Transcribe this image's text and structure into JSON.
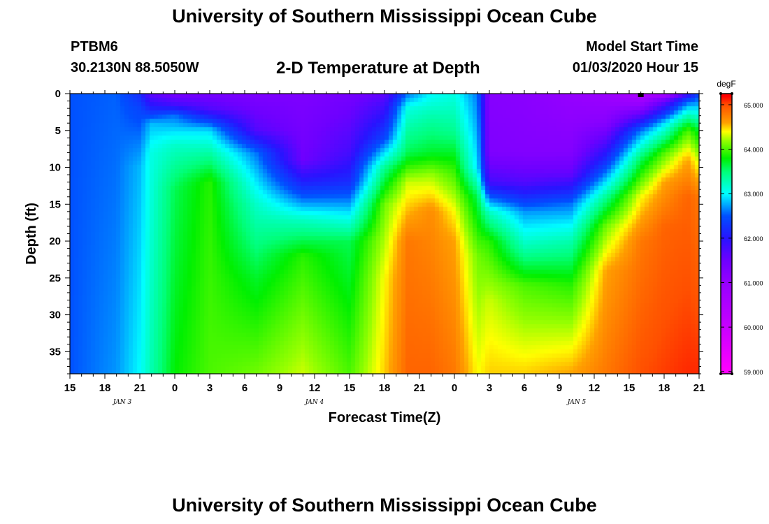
{
  "header": {
    "title": "University of Southern Mississippi Ocean Cube",
    "station_id": "PTBM6",
    "station_coords": "30.2130N 88.5050W",
    "plot_title": "2-D Temperature at Depth",
    "model_start_label": "Model Start Time",
    "model_start_value": "01/03/2020 Hour 15"
  },
  "footer": {
    "title": "University of Southern Mississippi Ocean Cube"
  },
  "chart_data": {
    "type": "heatmap",
    "title": "2-D Temperature at Depth",
    "xlabel": "Forecast Time(Z)",
    "ylabel": "Depth (ft)",
    "x_tick_labels": [
      "15",
      "18",
      "21",
      "0",
      "3",
      "6",
      "9",
      "12",
      "15",
      "18",
      "21",
      "0",
      "3",
      "6",
      "9",
      "12",
      "15",
      "18",
      "21"
    ],
    "x_range_hours": [
      0,
      54
    ],
    "date_labels": [
      {
        "hour": 4.5,
        "label": "JAN 3"
      },
      {
        "hour": 21,
        "label": "JAN 4"
      },
      {
        "hour": 43.5,
        "label": "JAN 5"
      }
    ],
    "y_ticks": [
      0,
      5,
      10,
      15,
      20,
      25,
      30,
      35
    ],
    "y_range": [
      0,
      38
    ],
    "colorbar": {
      "unit": "degF",
      "min": 58.95,
      "max": 65.25,
      "tick_values": [
        65,
        64,
        63,
        62,
        61,
        60,
        59
      ],
      "tick_labels": [
        "65.000",
        "64.000",
        "63.000",
        "62.000",
        "61.000",
        "60.000",
        "59.000"
      ]
    },
    "temperature_depth_profiles_degF": [
      {
        "hour": 0,
        "depths": [
          0,
          38
        ],
        "temps": [
          62.5,
          62.5
        ]
      },
      {
        "hour": 4,
        "depths": [
          0,
          38
        ],
        "temps": [
          62.55,
          62.7
        ]
      },
      {
        "hour": 6,
        "depths": [
          0,
          2,
          10,
          38
        ],
        "temps": [
          62.2,
          62.4,
          62.8,
          63.0
        ]
      },
      {
        "hour": 7,
        "depths": [
          0,
          2,
          4,
          8,
          38
        ],
        "temps": [
          61.6,
          62.1,
          62.8,
          63.1,
          63.3
        ]
      },
      {
        "hour": 9,
        "depths": [
          0,
          1.5,
          3,
          7,
          13,
          38
        ],
        "temps": [
          61.4,
          61.8,
          62.6,
          63.2,
          63.6,
          63.8
        ]
      },
      {
        "hour": 12,
        "depths": [
          0,
          2,
          5,
          12,
          38
        ],
        "temps": [
          61.4,
          61.7,
          62.9,
          63.9,
          64.0
        ]
      },
      {
        "hour": 16,
        "depths": [
          0,
          5,
          8,
          15,
          25,
          38
        ],
        "temps": [
          61.3,
          61.7,
          62.6,
          63.2,
          63.7,
          64.1
        ]
      },
      {
        "hour": 20,
        "depths": [
          0,
          9,
          13,
          17,
          22,
          38
        ],
        "temps": [
          61.3,
          61.5,
          62.3,
          63.2,
          63.9,
          64.3
        ]
      },
      {
        "hour": 24,
        "depths": [
          0,
          8,
          12,
          16,
          20,
          38
        ],
        "temps": [
          61.4,
          61.8,
          62.2,
          62.9,
          63.6,
          64.0
        ]
      },
      {
        "hour": 27,
        "depths": [
          0,
          6,
          10,
          15,
          25,
          38
        ],
        "temps": [
          61.6,
          62.4,
          63.4,
          64.1,
          64.4,
          64.5
        ]
      },
      {
        "hour": 29,
        "depths": [
          0,
          2,
          8,
          12,
          20,
          38
        ],
        "temps": [
          62.6,
          63.1,
          63.6,
          64.3,
          64.8,
          64.9
        ]
      },
      {
        "hour": 31,
        "depths": [
          0,
          3,
          8,
          11,
          16,
          38
        ],
        "temps": [
          63.0,
          63.3,
          63.7,
          64.2,
          64.7,
          64.9
        ]
      },
      {
        "hour": 33,
        "depths": [
          0,
          5,
          10,
          16,
          20,
          38
        ],
        "temps": [
          63.1,
          63.4,
          63.9,
          64.4,
          64.6,
          64.8
        ]
      },
      {
        "hour": 35,
        "depths": [
          0,
          10,
          14,
          22,
          38
        ],
        "temps": [
          62.6,
          62.9,
          63.6,
          64.1,
          64.4
        ]
      },
      {
        "hour": 36,
        "depths": [
          0,
          8,
          12,
          16,
          20,
          28,
          38
        ],
        "temps": [
          61.2,
          61.3,
          61.8,
          63.2,
          63.9,
          64.3,
          64.5
        ]
      },
      {
        "hour": 39,
        "depths": [
          0,
          8,
          12,
          16,
          21,
          26,
          38
        ],
        "temps": [
          61.15,
          61.25,
          61.7,
          62.7,
          63.3,
          64.0,
          64.5
        ]
      },
      {
        "hour": 43,
        "depths": [
          0,
          8,
          11,
          15,
          20,
          26,
          38
        ],
        "temps": [
          61.0,
          61.25,
          61.6,
          62.6,
          63.3,
          63.9,
          64.6
        ]
      },
      {
        "hour": 46,
        "depths": [
          0,
          4,
          9,
          14,
          18,
          24,
          38
        ],
        "temps": [
          60.9,
          61.2,
          62.2,
          63.4,
          64.1,
          64.6,
          64.8
        ]
      },
      {
        "hour": 49,
        "depths": [
          0,
          2,
          5,
          9,
          14,
          20,
          38
        ],
        "temps": [
          60.5,
          61.2,
          62.6,
          63.6,
          64.4,
          64.8,
          65.0
        ]
      },
      {
        "hour": 51,
        "depths": [
          0,
          1,
          4,
          8,
          12,
          18,
          38
        ],
        "temps": [
          60.6,
          61.5,
          62.9,
          64.0,
          64.6,
          64.9,
          65.05
        ]
      },
      {
        "hour": 53,
        "depths": [
          0,
          1,
          3,
          5,
          9,
          14,
          38
        ],
        "temps": [
          61.8,
          62.5,
          63.3,
          64.0,
          64.6,
          64.9,
          65.1
        ]
      },
      {
        "hour": 54,
        "depths": [
          0,
          2,
          5,
          9,
          14,
          38
        ],
        "temps": [
          62.4,
          62.9,
          63.7,
          64.3,
          64.8,
          65.1
        ]
      }
    ],
    "marker": {
      "hour": 49,
      "depth": 0
    }
  }
}
